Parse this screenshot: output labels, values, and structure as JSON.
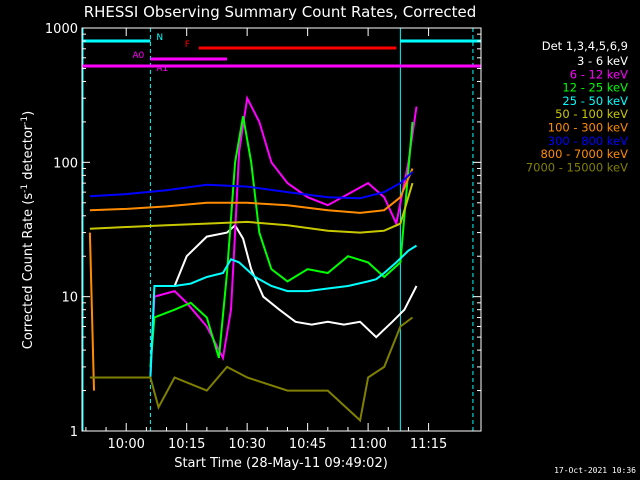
{
  "chart_data": {
    "type": "line",
    "title": "RHESSI Observing Summary Count Rates, Corrected",
    "xlabel": "Start Time (28-May-11 09:49:02)",
    "ylabel_main": "Corrected Count Rate (s",
    "ylabel_sup1": "-1",
    "ylabel_mid": " detector",
    "ylabel_sup2": "-1",
    "ylabel_end": ")",
    "timestamp": "17-Oct-2021 10:36",
    "yscale": "log",
    "ylim": [
      1,
      1000
    ],
    "xlim": [
      "09:49:02",
      "11:28:00"
    ],
    "x_ticks": [
      "10:00",
      "10:15",
      "10:30",
      "10:45",
      "11:00",
      "11:15"
    ],
    "y_ticks": [
      "1",
      "10",
      "100",
      "1000"
    ],
    "legend_header": "Det 1,3,4,5,6,9",
    "legend_position": "right",
    "colors": {
      "background": "#000000",
      "axes": "#ffffff",
      "night": "#00ffff",
      "flare": "#ff0000",
      "attenuator": "#ff00ff"
    },
    "series": [
      {
        "name": "3 - 6 keV",
        "color": "#ffffff",
        "x": [
          "09:54",
          "10:06",
          "10:07",
          "10:12",
          "10:15",
          "10:20",
          "10:25",
          "10:27",
          "10:29",
          "10:31",
          "10:34",
          "10:38",
          "10:42",
          "10:46",
          "10:50",
          "10:54",
          "10:58",
          "11:02",
          "11:06",
          "11:09",
          "11:12"
        ],
        "y": [
          null,
          2.5,
          null,
          12,
          20,
          28,
          30,
          34,
          27,
          16,
          10,
          8,
          6.5,
          6.2,
          6.5,
          6.2,
          6.5,
          5,
          6.5,
          8,
          12
        ]
      },
      {
        "name": "6 - 12 keV",
        "color": "#ff00ff",
        "x": [
          "10:06",
          "10:07",
          "10:12",
          "10:15",
          "10:20",
          "10:24",
          "10:26",
          "10:27",
          "10:28",
          "10:30",
          "10:33",
          "10:36",
          "10:40",
          "10:45",
          "10:50",
          "10:55",
          "11:00",
          "11:04",
          "11:07",
          "11:10",
          "11:12"
        ],
        "y": [
          2.5,
          10,
          11,
          9,
          6,
          3.5,
          8,
          30,
          120,
          300,
          200,
          100,
          70,
          55,
          48,
          58,
          70,
          55,
          35,
          100,
          260
        ]
      },
      {
        "name": "12 - 25 keV",
        "color": "#00ff00",
        "x": [
          "10:06",
          "10:07",
          "10:12",
          "10:16",
          "10:20",
          "10:23",
          "10:25",
          "10:27",
          "10:29",
          "10:31",
          "10:33",
          "10:36",
          "10:40",
          "10:45",
          "10:50",
          "10:55",
          "11:00",
          "11:04",
          "11:08",
          "11:11"
        ],
        "y": [
          3,
          7,
          8,
          9,
          7,
          3.5,
          15,
          100,
          220,
          100,
          30,
          16,
          13,
          16,
          15,
          20,
          18,
          14,
          18,
          200
        ]
      },
      {
        "name": "25 - 50 keV",
        "color": "#00ffff",
        "x": [
          "10:06",
          "10:07",
          "10:12",
          "10:16",
          "10:20",
          "10:24",
          "10:26",
          "10:28",
          "10:32",
          "10:36",
          "10:40",
          "10:45",
          "10:50",
          "10:55",
          "11:00",
          "11:02",
          "11:04",
          "11:07",
          "11:10",
          "11:12"
        ],
        "y": [
          2.5,
          12,
          12,
          12.5,
          14,
          15,
          19,
          18,
          14,
          12,
          11,
          11,
          11.5,
          12,
          13,
          13.5,
          15,
          18,
          22,
          24
        ]
      },
      {
        "name": "50 - 100 keV",
        "color": "#c8c800",
        "x": [
          "09:51",
          "10:00",
          "10:10",
          "10:20",
          "10:30",
          "10:40",
          "10:50",
          "10:58",
          "11:04",
          "11:08",
          "11:11"
        ],
        "y": [
          32,
          33,
          34,
          35,
          36,
          34,
          31,
          30,
          31,
          35,
          70
        ]
      },
      {
        "name": "100 - 300 keV",
        "color": "#ff8c00",
        "x": [
          "09:51",
          "10:00",
          "10:10",
          "10:20",
          "10:30",
          "10:40",
          "10:50",
          "10:58",
          "11:04",
          "11:08",
          "11:11"
        ],
        "y": [
          44,
          45,
          47,
          50,
          50,
          48,
          44,
          42,
          44,
          55,
          90
        ]
      },
      {
        "name": "300 - 800 keV",
        "color": "#0000ff",
        "x": [
          "09:51",
          "10:00",
          "10:10",
          "10:20",
          "10:30",
          "10:40",
          "10:50",
          "10:58",
          "11:04",
          "11:08",
          "11:11"
        ],
        "y": [
          56,
          58,
          62,
          68,
          66,
          60,
          55,
          54,
          60,
          70,
          85
        ]
      },
      {
        "name": "800 - 7000 keV",
        "color": "#ff8c00",
        "x": [
          "09:51",
          "09:52"
        ],
        "y": [
          30,
          2
        ]
      },
      {
        "name": "7000 - 15000 keV",
        "color": "#808000",
        "x": [
          "09:51",
          "10:06",
          "10:08",
          "10:12",
          "10:20",
          "10:25",
          "10:30",
          "10:40",
          "10:50",
          "10:58",
          "11:00",
          "11:04",
          "11:08",
          "11:11"
        ],
        "y": [
          2.5,
          2.5,
          1.5,
          2.5,
          2,
          3,
          2.5,
          2,
          2,
          1.2,
          2.5,
          3,
          6,
          7
        ]
      }
    ],
    "state_bars": [
      {
        "label": "N",
        "color": "#00ffff",
        "segments": [
          [
            "09:49",
            "10:06"
          ],
          [
            "11:08",
            "11:28"
          ]
        ]
      },
      {
        "label": "F",
        "color": "#ff0000",
        "segments": [
          [
            "10:18",
            "11:07"
          ]
        ]
      },
      {
        "label": "A0",
        "color": "#ff00ff",
        "segments": [
          [
            "10:06",
            "10:25"
          ]
        ]
      },
      {
        "label": "A1",
        "color": "#ff00ff",
        "segments": [
          [
            "09:49",
            "11:28"
          ]
        ]
      }
    ],
    "night_boundaries": [
      "10:06",
      "11:08",
      "11:26"
    ]
  }
}
